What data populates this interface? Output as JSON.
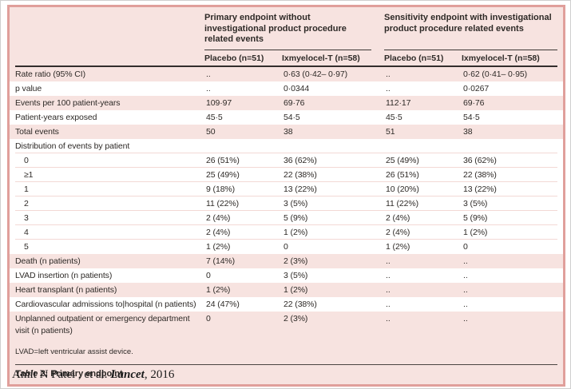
{
  "table": {
    "group_headers": {
      "primary": "Primary endpoint without investigational product procedure related events",
      "sensitivity": "Sensitivity endpoint with investigational product procedure related events"
    },
    "column_headers": [
      "Placebo (n=51)",
      "Ixmyelocel-T (n=58)",
      "Placebo (n=51)",
      "Ixmyelocel-T (n=58)"
    ],
    "rows": [
      {
        "label": "Rate ratio (95% CI)",
        "values": [
          "..",
          "0·63 (0·42– 0·97)",
          "..",
          "0·62 (0·41– 0·95)"
        ],
        "shade": "pink",
        "indent": false,
        "twoline": false,
        "sep": false
      },
      {
        "label": "p value",
        "values": [
          "..",
          "0·0344",
          "..",
          "0·0267"
        ],
        "shade": "white",
        "indent": false,
        "twoline": false,
        "sep": false
      },
      {
        "label": "Events per 100 patient-years",
        "values": [
          "109·97",
          "69·76",
          "112·17",
          "69·76"
        ],
        "shade": "pink",
        "indent": false,
        "twoline": false,
        "sep": false
      },
      {
        "label": "Patient-years exposed",
        "values": [
          "45·5",
          "54·5",
          "45·5",
          "54·5"
        ],
        "shade": "white",
        "indent": false,
        "twoline": false,
        "sep": false
      },
      {
        "label": "Total events",
        "values": [
          "50",
          "38",
          "51",
          "38"
        ],
        "shade": "pink",
        "indent": false,
        "twoline": false,
        "sep": false
      },
      {
        "label": "Distribution of events by patient",
        "values": [
          "",
          "",
          "",
          ""
        ],
        "shade": "white",
        "indent": false,
        "twoline": false,
        "sep": true
      },
      {
        "label": "0",
        "values": [
          "26 (51%)",
          "36 (62%)",
          "25 (49%)",
          "36 (62%)"
        ],
        "shade": "white",
        "indent": true,
        "twoline": false,
        "sep": true
      },
      {
        "label": "≥1",
        "values": [
          "25 (49%)",
          "22 (38%)",
          "26 (51%)",
          "22 (38%)"
        ],
        "shade": "white",
        "indent": true,
        "twoline": false,
        "sep": true
      },
      {
        "label": "1",
        "values": [
          "9 (18%)",
          "13 (22%)",
          "10 (20%)",
          "13 (22%)"
        ],
        "shade": "white",
        "indent": true,
        "twoline": false,
        "sep": true
      },
      {
        "label": "2",
        "values": [
          "11 (22%)",
          "3 (5%)",
          "11 (22%)",
          "3 (5%)"
        ],
        "shade": "white",
        "indent": true,
        "twoline": false,
        "sep": true
      },
      {
        "label": "3",
        "values": [
          "2 (4%)",
          "5 (9%)",
          "2 (4%)",
          "5 (9%)"
        ],
        "shade": "white",
        "indent": true,
        "twoline": false,
        "sep": true
      },
      {
        "label": "4",
        "values": [
          "2 (4%)",
          "1 (2%)",
          "2 (4%)",
          "1 (2%)"
        ],
        "shade": "white",
        "indent": true,
        "twoline": false,
        "sep": true
      },
      {
        "label": "5",
        "values": [
          "1 (2%)",
          "0",
          "1 (2%)",
          "0"
        ],
        "shade": "white",
        "indent": true,
        "twoline": false,
        "sep": false
      },
      {
        "label": "Death (n patients)",
        "values": [
          "7 (14%)",
          "2 (3%)",
          "..",
          ".."
        ],
        "shade": "pink",
        "indent": false,
        "twoline": false,
        "sep": false
      },
      {
        "label": "LVAD insertion (n patients)",
        "values": [
          "0",
          "3 (5%)",
          "..",
          ".."
        ],
        "shade": "white",
        "indent": false,
        "twoline": false,
        "sep": false
      },
      {
        "label": "Heart transplant (n patients)",
        "values": [
          "1 (2%)",
          "1 (2%)",
          "..",
          ".."
        ],
        "shade": "pink",
        "indent": false,
        "twoline": false,
        "sep": false
      },
      {
        "label": "Cardiovascular admissions to|hospital (n patients)",
        "values": [
          "24 (47%)",
          "22 (38%)",
          "..",
          ".."
        ],
        "shade": "white",
        "indent": false,
        "twoline": false,
        "sep": false
      },
      {
        "label": "Unplanned outpatient or emergency department visit (n patients)",
        "values": [
          "0",
          "2 (3%)",
          "..",
          ".."
        ],
        "shade": "pink",
        "indent": false,
        "twoline": true,
        "sep": false
      }
    ],
    "footnote": "LVAD=left ventricular assist device.",
    "caption_prefix": "Table 2",
    "caption_rest": ": Primary endpoint"
  },
  "citation": {
    "pre": "Amit N Patel , et al. ",
    "journal": "Lancet",
    "post": ", 2016"
  },
  "colors": {
    "panel_background": "#f7e3e0",
    "panel_border": "#e09f9b",
    "row_pink": "#f7e3e0",
    "row_white": "#ffffff",
    "text": "#2e2a27"
  }
}
